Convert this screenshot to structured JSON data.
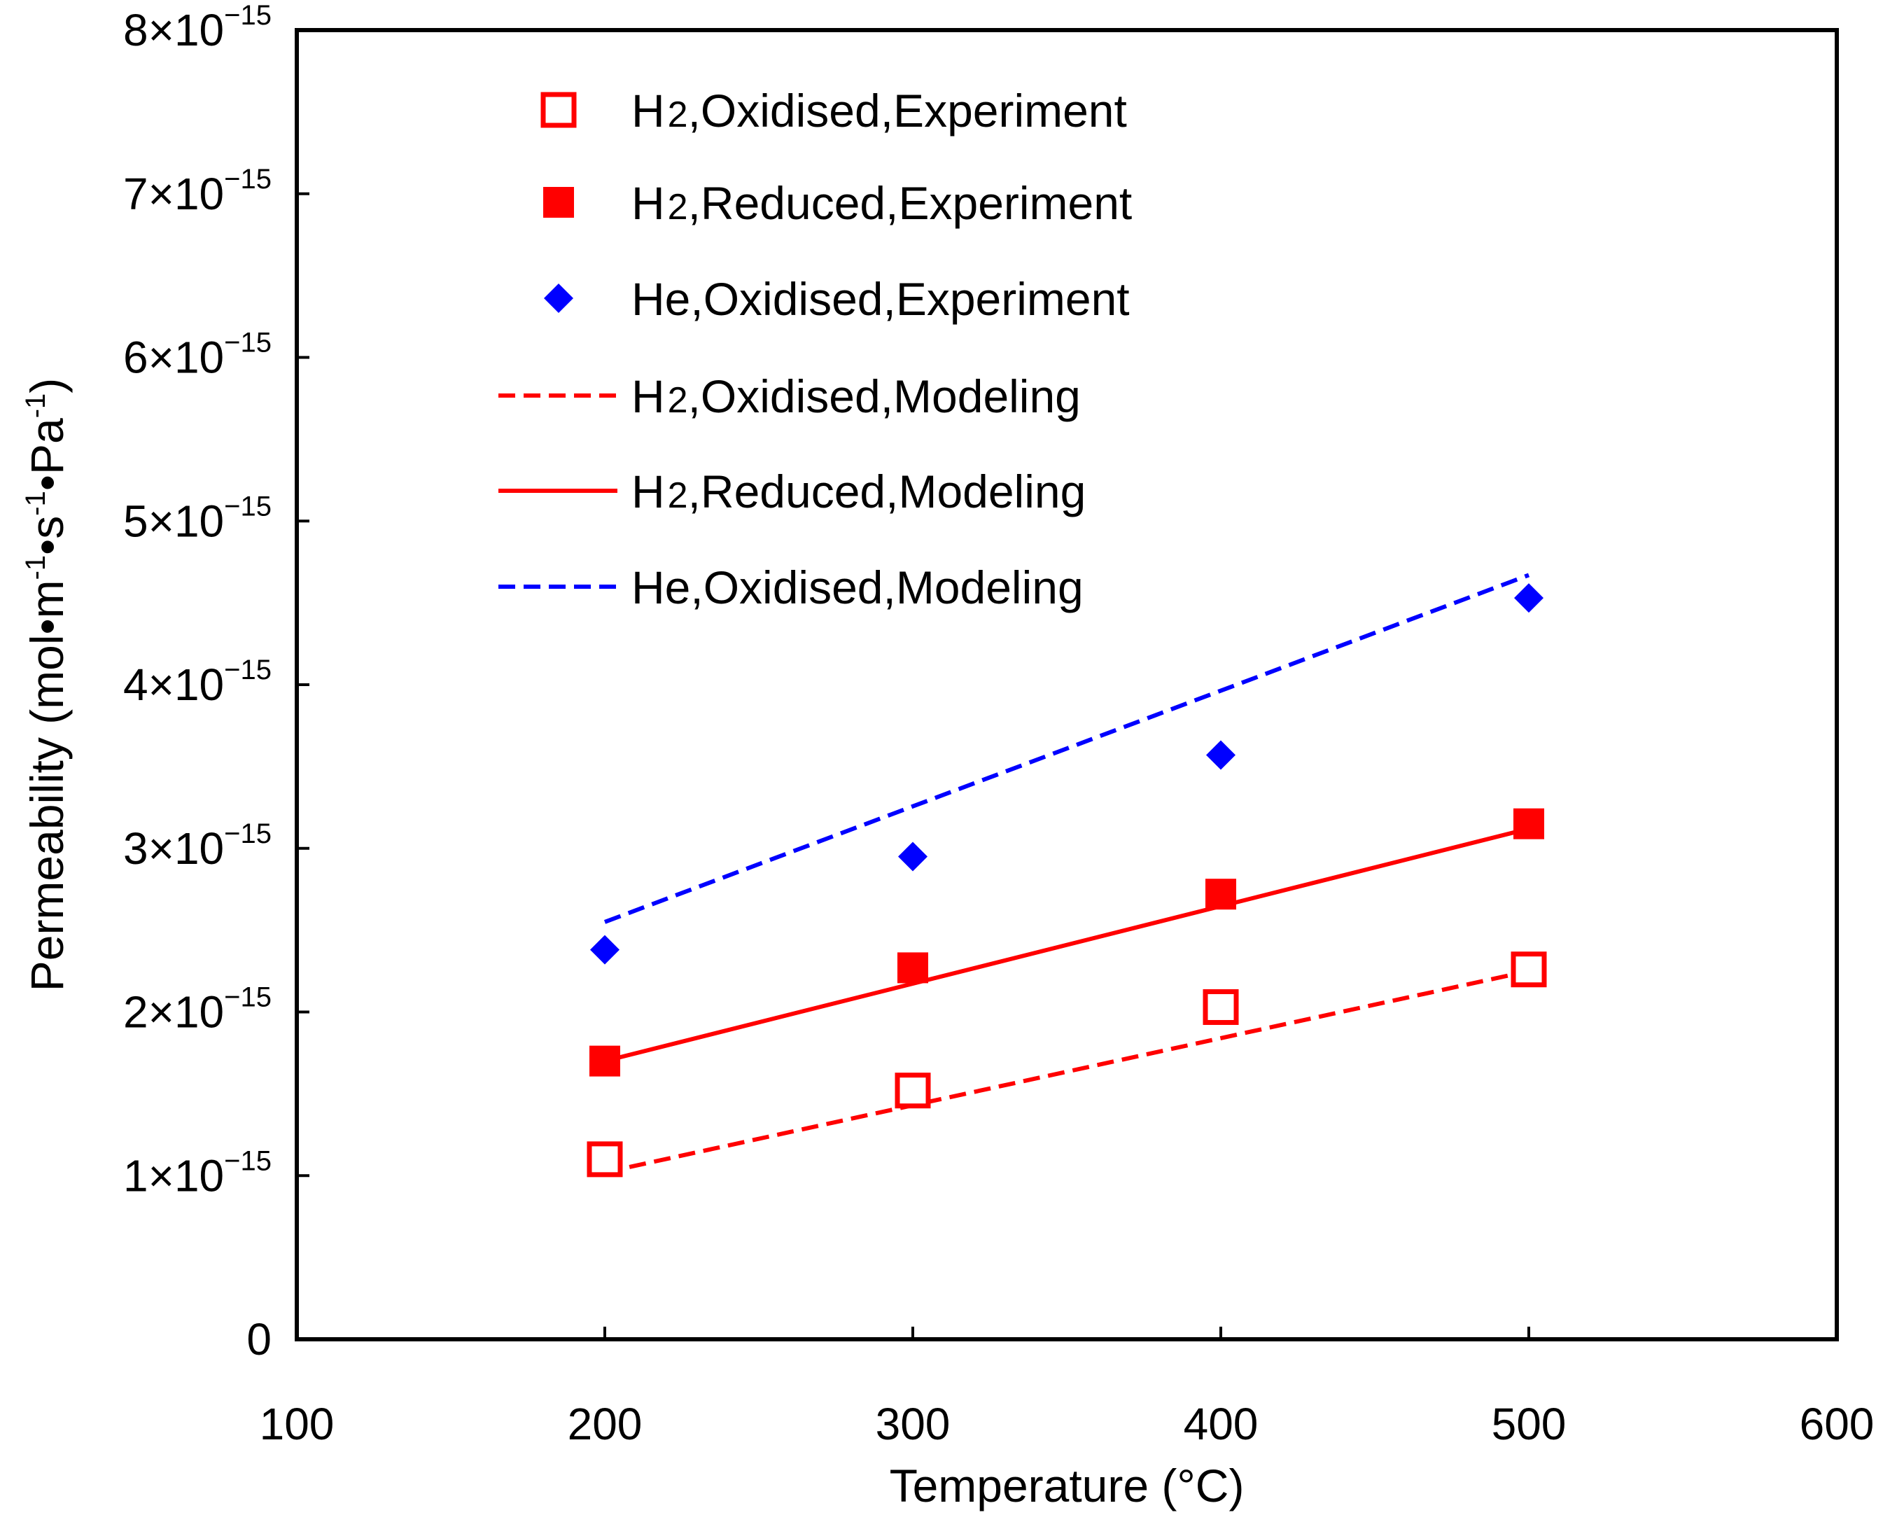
{
  "chart_data": {
    "type": "scatter",
    "xlabel": "Temperature (°C)",
    "ylabel": "Permeability (mol•m-1•s-1•Pa-1)",
    "ylabel_parts": {
      "pre": "Permeability (mol•m",
      "sup1": "-1",
      "mid1": "•s",
      "sup2": "-1",
      "mid2": "•Pa",
      "sup3": "-1",
      "post": ")"
    },
    "xlim": [
      100,
      600
    ],
    "ylim": [
      0,
      8e-15
    ],
    "x_ticks": [
      {
        "value": 100,
        "label": "100"
      },
      {
        "value": 200,
        "label": "200"
      },
      {
        "value": 300,
        "label": "300"
      },
      {
        "value": 400,
        "label": "400"
      },
      {
        "value": 500,
        "label": "500"
      },
      {
        "value": 600,
        "label": "600"
      }
    ],
    "y_ticks": [
      {
        "value": 0,
        "mant": "0",
        "exp": ""
      },
      {
        "value": 1e-15,
        "mant": "1×10",
        "exp": "−15"
      },
      {
        "value": 2e-15,
        "mant": "2×10",
        "exp": "−15"
      },
      {
        "value": 3e-15,
        "mant": "3×10",
        "exp": "−15"
      },
      {
        "value": 4e-15,
        "mant": "4×10",
        "exp": "−15"
      },
      {
        "value": 5e-15,
        "mant": "5×10",
        "exp": "−15"
      },
      {
        "value": 6e-15,
        "mant": "6×10",
        "exp": "−15"
      },
      {
        "value": 7e-15,
        "mant": "7×10",
        "exp": "−15"
      },
      {
        "value": 8e-15,
        "mant": "8×10",
        "exp": "−15"
      }
    ],
    "series": [
      {
        "name": "H₂,Oxidised,Experiment",
        "kind": "marker",
        "marker": "square-open",
        "color": "#ff0000",
        "x": [
          200,
          300,
          400,
          500
        ],
        "y": [
          1.1e-15,
          1.52e-15,
          2.03e-15,
          2.26e-15
        ]
      },
      {
        "name": "H₂,Reduced,Experiment",
        "kind": "marker",
        "marker": "square-filled",
        "color": "#ff0000",
        "x": [
          200,
          300,
          400,
          500
        ],
        "y": [
          1.7e-15,
          2.27e-15,
          2.72e-15,
          3.15e-15
        ]
      },
      {
        "name": "He,Oxidised,Experiment",
        "kind": "marker",
        "marker": "diamond",
        "color": "#0000ff",
        "x": [
          200,
          300,
          400,
          500
        ],
        "y": [
          2.38e-15,
          2.95e-15,
          3.57e-15,
          4.53e-15
        ]
      },
      {
        "name": "H₂,Oxidised,Modeling",
        "kind": "line",
        "dash": "dashed",
        "color": "#ff0000",
        "x": [
          200,
          500
        ],
        "y": [
          1.02e-15,
          2.25e-15
        ]
      },
      {
        "name": "H₂,Reduced,Modeling",
        "kind": "line",
        "dash": "solid",
        "color": "#ff0000",
        "x": [
          200,
          500
        ],
        "y": [
          1.7e-15,
          3.12e-15
        ]
      },
      {
        "name": "He,Oxidised,Modeling",
        "kind": "line",
        "dash": "dashed",
        "color": "#0000ff",
        "x": [
          200,
          500
        ],
        "y": [
          2.55e-15,
          4.67e-15
        ]
      }
    ],
    "legend": {
      "placement": "top-left",
      "entries": [
        {
          "prefix": "H",
          "sub": "2",
          "suffix": ",Oxidised,Experiment"
        },
        {
          "prefix": "H",
          "sub": "2",
          "suffix": ",Reduced,Experiment"
        },
        {
          "prefix": "He",
          "sub": "",
          "suffix": ",Oxidised,Experiment"
        },
        {
          "prefix": "H",
          "sub": "2",
          "suffix": ",Oxidised,Modeling"
        },
        {
          "prefix": "H",
          "sub": "2",
          "suffix": ",Reduced,Modeling"
        },
        {
          "prefix": "He",
          "sub": "",
          "suffix": ",Oxidised,Modeling"
        }
      ]
    },
    "grid": false
  }
}
